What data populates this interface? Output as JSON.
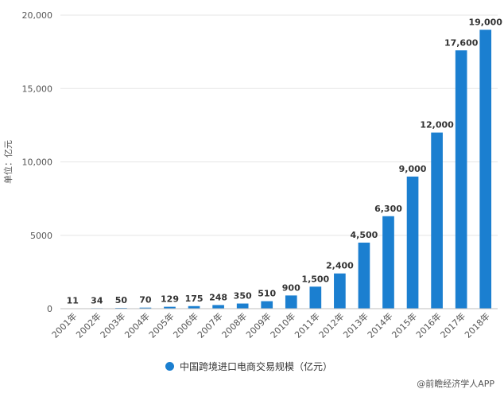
{
  "chart_data": {
    "type": "bar",
    "categories": [
      "2001年",
      "2002年",
      "2003年",
      "2004年",
      "2005年",
      "2006年",
      "2007年",
      "2008年",
      "2009年",
      "2010年",
      "2011年",
      "2012年",
      "2013年",
      "2014年",
      "2015年",
      "2016年",
      "2017年",
      "2018年"
    ],
    "series": [
      {
        "name": "中国跨境进口电商交易规模（亿元）",
        "values": [
          11,
          34,
          50,
          70,
          129,
          175,
          248,
          350,
          510,
          900,
          1500,
          2400,
          4500,
          6300,
          9000,
          12000,
          17600,
          19000
        ],
        "labels": [
          "11",
          "34",
          "50",
          "70",
          "129",
          "175",
          "248",
          "350",
          "510",
          "900",
          "1,500",
          "2,400",
          "4,500",
          "6,300",
          "9,000",
          "12,000",
          "17,600",
          "19,000"
        ]
      }
    ],
    "ylabel": "单位：亿元",
    "ylim": [
      0,
      20000
    ],
    "yticks": [
      0,
      5000,
      10000,
      15000,
      20000
    ],
    "ytick_labels": [
      "0",
      "5000",
      "10,000",
      "15,000",
      "20,000"
    ],
    "grid": true,
    "legend_position": "bottom",
    "bar_color": "#1b7fd0"
  },
  "legend": {
    "label": "中国跨境进口电商交易规模（亿元）"
  },
  "source": "@前瞻经济学人APP"
}
